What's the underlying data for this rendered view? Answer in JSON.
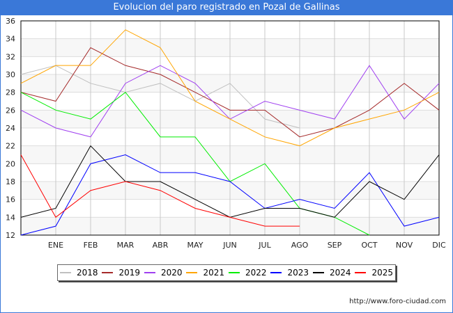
{
  "chart_data": {
    "type": "line",
    "title": "Evolucion del paro registrado en Pozal de Gallinas",
    "categories": [
      "",
      "ENE",
      "FEB",
      "MAR",
      "ABR",
      "MAY",
      "JUN",
      "JUL",
      "AGO",
      "SEP",
      "OCT",
      "NOV",
      "DIC"
    ],
    "ylim": [
      12,
      36
    ],
    "yticks": [
      12,
      14,
      16,
      18,
      20,
      22,
      24,
      26,
      28,
      30,
      32,
      34,
      36
    ],
    "grid": true,
    "legend_position": "bottom",
    "series": [
      {
        "name": "2018",
        "color": "#c0c0c0",
        "values": [
          30,
          31,
          29,
          28,
          29,
          27,
          29,
          25,
          24,
          null,
          null,
          null,
          null
        ]
      },
      {
        "name": "2019",
        "color": "#a52a2a",
        "values": [
          28,
          27,
          33,
          31,
          30,
          28,
          26,
          26,
          23,
          24,
          26,
          29,
          26
        ]
      },
      {
        "name": "2020",
        "color": "#a040f0",
        "values": [
          26,
          24,
          23,
          29,
          31,
          29,
          25,
          27,
          26,
          25,
          31,
          25,
          29
        ]
      },
      {
        "name": "2021",
        "color": "#ffa500",
        "values": [
          29,
          31,
          31,
          35,
          33,
          27,
          25,
          23,
          22,
          24,
          25,
          26,
          28
        ]
      },
      {
        "name": "2022",
        "color": "#00ee00",
        "values": [
          28,
          26,
          25,
          28,
          23,
          23,
          18,
          20,
          15,
          14,
          12,
          null,
          null
        ]
      },
      {
        "name": "2023",
        "color": "#0000ff",
        "values": [
          12,
          13,
          20,
          21,
          19,
          19,
          18,
          15,
          16,
          15,
          19,
          13,
          14
        ]
      },
      {
        "name": "2024",
        "color": "#000000",
        "values": [
          14,
          15,
          22,
          18,
          18,
          16,
          14,
          15,
          15,
          14,
          18,
          16,
          21
        ]
      },
      {
        "name": "2025",
        "color": "#ff0000",
        "values": [
          21,
          14,
          17,
          18,
          17,
          15,
          14,
          13,
          13,
          null,
          null,
          null,
          null
        ]
      }
    ]
  },
  "credit": "http://www.foro-ciudad.com"
}
